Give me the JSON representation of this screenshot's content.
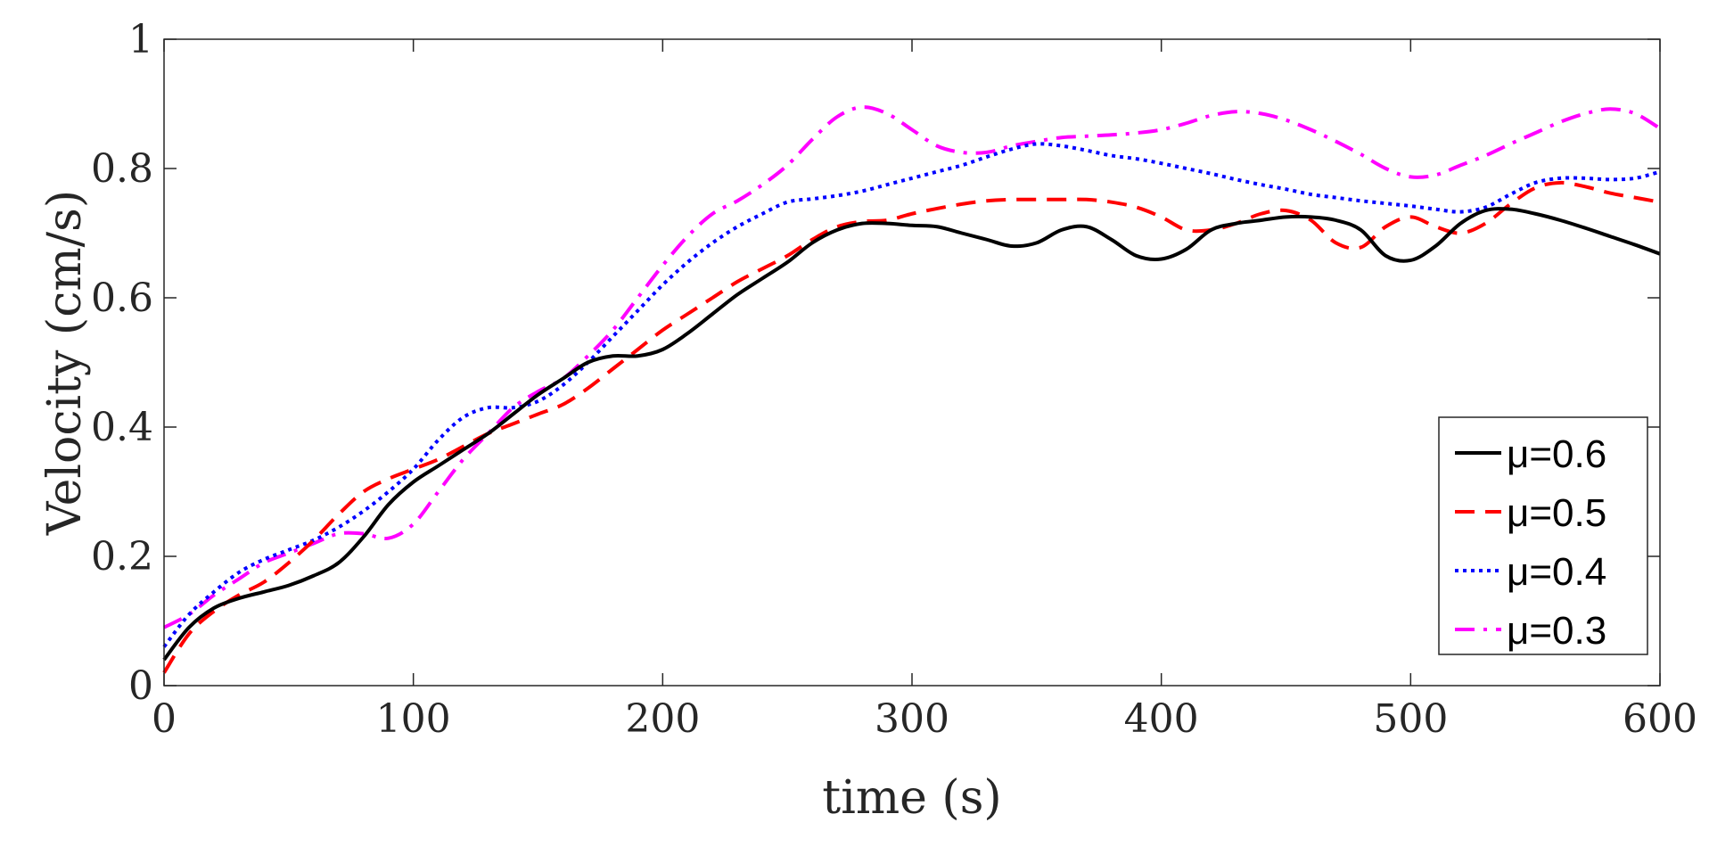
{
  "chart_data": {
    "type": "line",
    "title": "",
    "xlabel": "time (s)",
    "ylabel": "Velocity (cm/s)",
    "xlim": [
      0,
      600
    ],
    "ylim": [
      0,
      1
    ],
    "xticks": [
      0,
      100,
      200,
      300,
      400,
      500,
      600
    ],
    "yticks": [
      0,
      0.2,
      0.4,
      0.6,
      0.8,
      1
    ],
    "xtick_labels": [
      "0",
      "100",
      "200",
      "300",
      "400",
      "500",
      "600"
    ],
    "ytick_labels": [
      "0",
      "0.2",
      "0.4",
      "0.6",
      "0.8",
      "1"
    ],
    "grid": false,
    "legend_position": "bottom-right",
    "x": [
      0,
      10,
      20,
      30,
      40,
      50,
      60,
      70,
      80,
      90,
      100,
      110,
      120,
      130,
      140,
      150,
      160,
      170,
      180,
      190,
      200,
      210,
      220,
      230,
      240,
      250,
      260,
      270,
      280,
      290,
      300,
      310,
      320,
      330,
      340,
      350,
      360,
      370,
      380,
      390,
      400,
      410,
      420,
      430,
      440,
      450,
      460,
      470,
      480,
      490,
      500,
      510,
      520,
      530,
      540,
      550,
      560,
      570,
      580,
      590,
      600
    ],
    "series": [
      {
        "name": "μ=0.6",
        "color": "#000000",
        "dash": "solid",
        "values": [
          0.04,
          0.09,
          0.12,
          0.135,
          0.145,
          0.155,
          0.17,
          0.19,
          0.23,
          0.28,
          0.315,
          0.34,
          0.365,
          0.39,
          0.42,
          0.45,
          0.475,
          0.5,
          0.51,
          0.51,
          0.52,
          0.545,
          0.575,
          0.605,
          0.63,
          0.655,
          0.685,
          0.705,
          0.715,
          0.715,
          0.712,
          0.71,
          0.7,
          0.69,
          0.68,
          0.685,
          0.705,
          0.71,
          0.69,
          0.665,
          0.66,
          0.675,
          0.705,
          0.715,
          0.72,
          0.725,
          0.725,
          0.72,
          0.705,
          0.665,
          0.658,
          0.68,
          0.715,
          0.735,
          0.737,
          0.73,
          0.72,
          0.708,
          0.695,
          0.682,
          0.668
        ]
      },
      {
        "name": "μ=0.5",
        "color": "#ff0000",
        "dash": "dashed",
        "values": [
          0.02,
          0.08,
          0.115,
          0.14,
          0.16,
          0.19,
          0.225,
          0.265,
          0.3,
          0.32,
          0.335,
          0.35,
          0.37,
          0.39,
          0.405,
          0.42,
          0.435,
          0.46,
          0.49,
          0.52,
          0.55,
          0.575,
          0.6,
          0.625,
          0.645,
          0.665,
          0.69,
          0.71,
          0.718,
          0.72,
          0.73,
          0.738,
          0.745,
          0.75,
          0.752,
          0.752,
          0.752,
          0.752,
          0.748,
          0.74,
          0.725,
          0.705,
          0.705,
          0.715,
          0.73,
          0.735,
          0.72,
          0.685,
          0.678,
          0.71,
          0.725,
          0.71,
          0.7,
          0.715,
          0.745,
          0.77,
          0.778,
          0.772,
          0.762,
          0.755,
          0.748
        ]
      },
      {
        "name": "μ=0.4",
        "color": "#0000ff",
        "dash": "dotted",
        "values": [
          0.06,
          0.11,
          0.145,
          0.175,
          0.195,
          0.21,
          0.225,
          0.245,
          0.27,
          0.3,
          0.335,
          0.38,
          0.415,
          0.43,
          0.43,
          0.44,
          0.465,
          0.5,
          0.54,
          0.58,
          0.62,
          0.655,
          0.685,
          0.71,
          0.73,
          0.748,
          0.753,
          0.758,
          0.765,
          0.775,
          0.785,
          0.795,
          0.805,
          0.818,
          0.83,
          0.838,
          0.835,
          0.828,
          0.82,
          0.815,
          0.808,
          0.8,
          0.792,
          0.783,
          0.775,
          0.768,
          0.76,
          0.755,
          0.75,
          0.746,
          0.742,
          0.737,
          0.733,
          0.74,
          0.76,
          0.778,
          0.785,
          0.785,
          0.783,
          0.785,
          0.795
        ]
      },
      {
        "name": "μ=0.3",
        "color": "#ff00ff",
        "dash": "dashdot",
        "values": [
          0.09,
          0.11,
          0.14,
          0.165,
          0.19,
          0.205,
          0.22,
          0.235,
          0.235,
          0.228,
          0.25,
          0.3,
          0.35,
          0.39,
          0.43,
          0.455,
          0.475,
          0.51,
          0.55,
          0.6,
          0.65,
          0.695,
          0.73,
          0.75,
          0.775,
          0.805,
          0.845,
          0.88,
          0.895,
          0.885,
          0.86,
          0.835,
          0.825,
          0.825,
          0.835,
          0.842,
          0.848,
          0.85,
          0.852,
          0.855,
          0.86,
          0.87,
          0.882,
          0.888,
          0.885,
          0.875,
          0.86,
          0.842,
          0.822,
          0.8,
          0.787,
          0.79,
          0.805,
          0.82,
          0.838,
          0.855,
          0.872,
          0.885,
          0.892,
          0.885,
          0.862
        ]
      }
    ]
  }
}
